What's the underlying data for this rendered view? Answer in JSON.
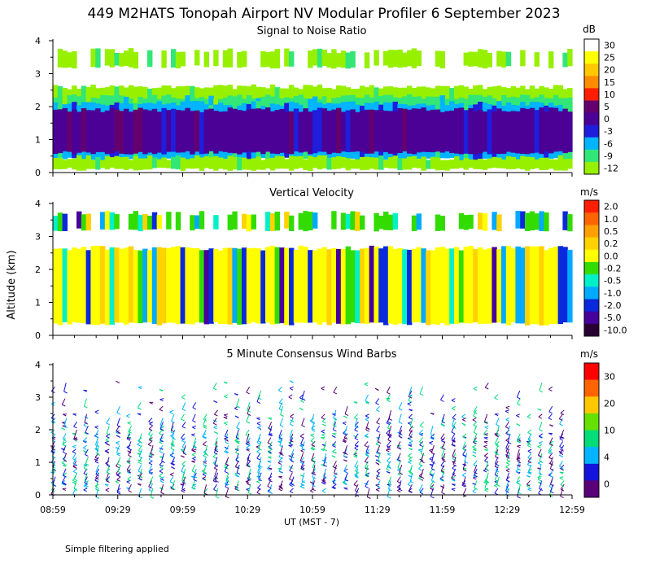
{
  "title": "449 M2HATS Tonopah Airport NV Modular Profiler  6 September 2023",
  "ylabel": "Altitude (km)",
  "xlabel": "UT  (MST - 7)",
  "footnote": "Simple filtering applied",
  "x_ticks": [
    "08:59",
    "09:29",
    "09:59",
    "10:29",
    "10:59",
    "11:29",
    "11:59",
    "12:29",
    "12:59"
  ],
  "chart_data": [
    {
      "type": "heatmap",
      "title": "Signal to Noise Ratio",
      "unit": "dB",
      "y_ticks": [
        "0",
        "1",
        "2",
        "3",
        "4"
      ],
      "ylim": [
        0,
        4
      ],
      "xlim": [
        "08:59",
        "12:59"
      ],
      "colorbar": {
        "labels": [
          "30",
          "25",
          "20",
          "15",
          "10",
          "5",
          "0",
          "-3",
          "-6",
          "-9",
          "-12"
        ],
        "colors": [
          "#ffffff",
          "#ffff00",
          "#ffc800",
          "#ff8c00",
          "#ff1e00",
          "#64006e",
          "#4b0096",
          "#1e1edc",
          "#00b4ff",
          "#32e678",
          "#96f000"
        ]
      },
      "layers": [
        {
          "name": "upper",
          "bottom": 3.2,
          "top": 3.7,
          "value": -12
        },
        {
          "name": "top edge",
          "bottom": 2.2,
          "top": 2.6,
          "value": -12
        },
        {
          "name": "edge",
          "bottom": 1.9,
          "top": 2.3,
          "value": -9
        },
        {
          "name": "band",
          "bottom": 0.4,
          "top": 2.1,
          "value": -6
        },
        {
          "name": "core",
          "bottom": 0.6,
          "top": 1.9,
          "value": 0
        },
        {
          "name": "surface",
          "bottom": 0.1,
          "top": 0.45,
          "value": -12
        }
      ]
    },
    {
      "type": "heatmap",
      "title": "Vertical Velocity",
      "unit": "m/s",
      "y_ticks": [
        "0",
        "1",
        "2",
        "3",
        "4"
      ],
      "ylim": [
        0,
        4
      ],
      "xlim": [
        "08:59",
        "12:59"
      ],
      "colorbar": {
        "labels": [
          "2.0",
          "1.0",
          "0.5",
          "0.2",
          "0.0",
          "-0.2",
          "-0.5",
          "-1.0",
          "-2.0",
          "-5.0",
          "-10.0"
        ],
        "colors": [
          "#ff1e00",
          "#ff6400",
          "#ffa000",
          "#ffd200",
          "#ffff00",
          "#32dc00",
          "#00f0c8",
          "#00aaff",
          "#0a28dc",
          "#46009b",
          "#280032"
        ]
      },
      "layers": [
        {
          "name": "upper",
          "bottom": 3.2,
          "top": 3.7,
          "value": -0.2
        },
        {
          "name": "main",
          "bottom": 0.35,
          "top": 2.65,
          "value": 0.0
        }
      ]
    },
    {
      "type": "scatter",
      "title": "5 Minute Consensus Wind Barbs",
      "unit": "m/s",
      "y_ticks": [
        "0",
        "1",
        "2",
        "3",
        "4"
      ],
      "ylim": [
        0,
        4
      ],
      "xlim": [
        "08:59",
        "12:59"
      ],
      "colorbar": {
        "labels": [
          "30",
          "20",
          "10",
          "4",
          "0"
        ],
        "colors": [
          "#ff0000",
          "#ff6400",
          "#ffc800",
          "#64e100",
          "#00dc78",
          "#00b4ff",
          "#1414dc",
          "#5a0078"
        ]
      },
      "barbs": {
        "interval_minutes": 5,
        "altitude_range": [
          0.2,
          3.5
        ],
        "typical_speed": 6
      }
    }
  ]
}
